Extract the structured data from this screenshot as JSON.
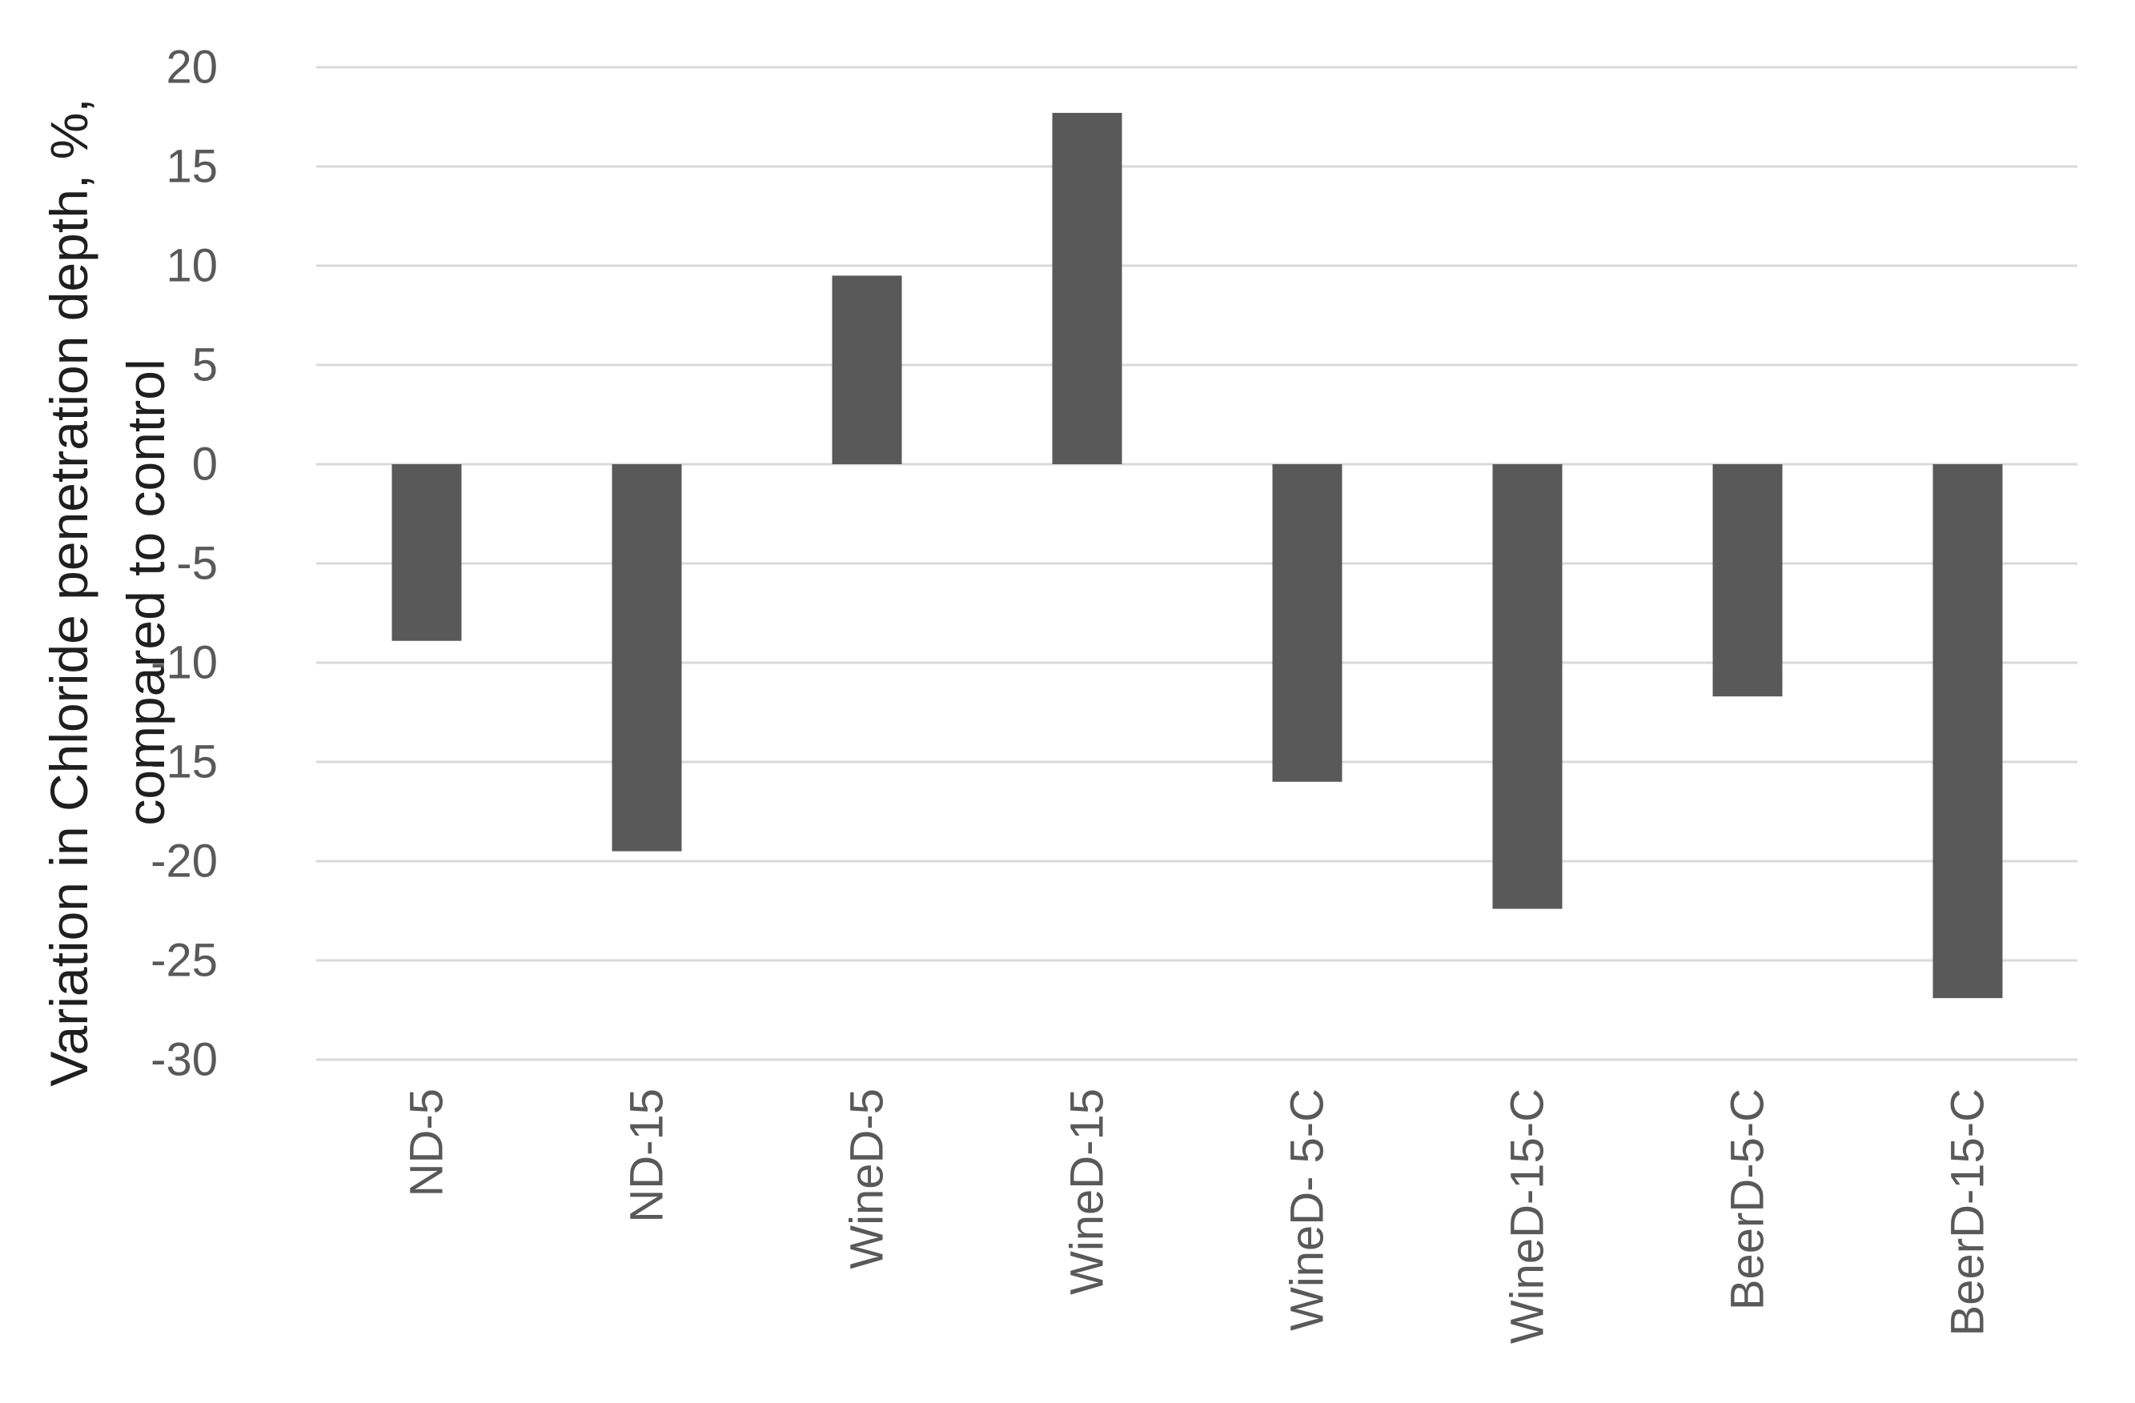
{
  "chart_data": {
    "type": "bar",
    "title": "",
    "xlabel": "",
    "ylabel": "Variation in Chloride penetration depth, %, compared to control",
    "ylabel_lines": [
      "Variation in Chloride penetration depth, %,",
      "compared to control"
    ],
    "categories": [
      "ND-5",
      "ND-15",
      "WineD-5",
      "WineD-15",
      "WineD- 5-C",
      "WineD-15-C",
      "BeerD-5-C",
      "BeerD-15-C"
    ],
    "values": [
      -8.9,
      -19.5,
      9.5,
      17.7,
      -16.0,
      -22.4,
      -11.7,
      -26.9
    ],
    "ylim": [
      -30,
      20
    ],
    "yticks": [
      20,
      15,
      10,
      5,
      0,
      -5,
      -10,
      -15,
      -20,
      -25,
      -30
    ],
    "grid": true,
    "legend": false,
    "colors": {
      "bar": "#595959",
      "gridline": "#D9D9D9",
      "tick_label": "#595959",
      "axis_title": "#1f1f1f",
      "background": "#FFFFFF"
    }
  }
}
